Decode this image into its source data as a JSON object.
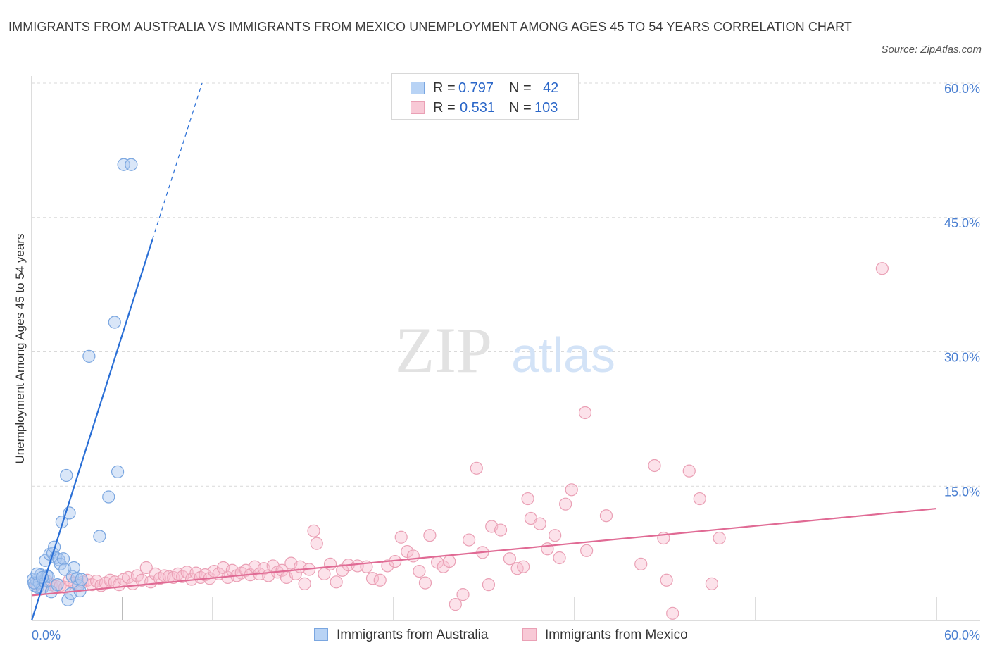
{
  "title": "IMMIGRANTS FROM AUSTRALIA VS IMMIGRANTS FROM MEXICO UNEMPLOYMENT AMONG AGES 45 TO 54 YEARS CORRELATION CHART",
  "source": "Source: ZipAtlas.com",
  "legend": {
    "australia": {
      "r_label": "R =",
      "r_value": "0.797",
      "n_label": "N =",
      "n_value": "42"
    },
    "mexico": {
      "r_label": "R =",
      "r_value": "0.531",
      "n_label": "N =",
      "n_value": "103"
    }
  },
  "bottom_legend": {
    "australia": "Immigrants from Australia",
    "mexico": "Immigrants from Mexico"
  },
  "watermark": {
    "zip": "ZIP",
    "atlas": "atlas"
  },
  "colors": {
    "australia": "#7aa6e0",
    "australia_line": "#2a6fd6",
    "mexico": "#eaa0b5",
    "mexico_line": "#e06a94",
    "tick": "#4a7fd1",
    "grid": "#d9d9d9"
  },
  "chart_data": {
    "type": "scatter",
    "xlabel": "",
    "ylabel": "Unemployment Among Ages 45 to 54 years",
    "xlim": [
      0,
      60
    ],
    "ylim": [
      0,
      60
    ],
    "x_tick_labels": [
      {
        "value": 0,
        "label": "0.0%"
      },
      {
        "value": 60,
        "label": "60.0%"
      }
    ],
    "y_tick_labels": [
      {
        "value": 15,
        "label": "15.0%"
      },
      {
        "value": 30,
        "label": "30.0%"
      },
      {
        "value": 45,
        "label": "45.0%"
      },
      {
        "value": 60,
        "label": "60.0%"
      }
    ],
    "series": [
      {
        "name": "Immigrants from Australia",
        "points": [
          [
            0.1,
            4.6
          ],
          [
            0.2,
            3.9
          ],
          [
            0.3,
            4.5
          ],
          [
            0.4,
            3.7
          ],
          [
            0.5,
            4.2
          ],
          [
            0.6,
            5.1
          ],
          [
            0.7,
            3.6
          ],
          [
            0.8,
            4.4
          ],
          [
            0.9,
            6.7
          ],
          [
            1.0,
            5.0
          ],
          [
            1.1,
            4.9
          ],
          [
            1.2,
            7.4
          ],
          [
            1.3,
            3.2
          ],
          [
            1.4,
            7.5
          ],
          [
            1.5,
            8.2
          ],
          [
            1.6,
            7.0
          ],
          [
            1.7,
            4.0
          ],
          [
            1.8,
            6.8
          ],
          [
            1.9,
            6.3
          ],
          [
            2.0,
            11.0
          ],
          [
            2.1,
            6.9
          ],
          [
            2.2,
            5.7
          ],
          [
            2.3,
            16.2
          ],
          [
            2.4,
            2.3
          ],
          [
            2.5,
            12.0
          ],
          [
            2.6,
            3.0
          ],
          [
            2.7,
            4.9
          ],
          [
            2.8,
            5.9
          ],
          [
            3.0,
            4.7
          ],
          [
            3.1,
            3.9
          ],
          [
            3.2,
            3.3
          ],
          [
            3.3,
            4.6
          ],
          [
            3.8,
            29.5
          ],
          [
            4.5,
            9.4
          ],
          [
            5.1,
            13.8
          ],
          [
            5.5,
            33.3
          ],
          [
            5.7,
            16.6
          ],
          [
            6.1,
            50.9
          ],
          [
            6.6,
            50.9
          ],
          [
            0.15,
            4.2
          ],
          [
            0.35,
            5.2
          ],
          [
            0.7,
            4.8
          ]
        ],
        "trend_solid": [
          [
            0,
            0
          ],
          [
            8,
            42.5
          ]
        ],
        "trend_dashed": [
          [
            8,
            42.5
          ],
          [
            11.3,
            60
          ]
        ]
      },
      {
        "name": "Immigrants from Mexico",
        "points": [
          [
            0.3,
            4.1
          ],
          [
            0.6,
            3.5
          ],
          [
            1.0,
            4.4
          ],
          [
            1.3,
            4.0
          ],
          [
            1.6,
            3.8
          ],
          [
            1.9,
            3.9
          ],
          [
            2.2,
            3.7
          ],
          [
            2.5,
            4.5
          ],
          [
            2.8,
            4.2
          ],
          [
            3.1,
            4.1
          ],
          [
            3.4,
            4.3
          ],
          [
            3.7,
            4.5
          ],
          [
            4.0,
            4.0
          ],
          [
            4.3,
            4.4
          ],
          [
            4.6,
            3.9
          ],
          [
            4.9,
            4.2
          ],
          [
            5.2,
            4.5
          ],
          [
            5.5,
            4.3
          ],
          [
            5.8,
            4.0
          ],
          [
            6.1,
            4.6
          ],
          [
            6.4,
            4.8
          ],
          [
            6.7,
            4.1
          ],
          [
            7.0,
            5.0
          ],
          [
            7.3,
            4.5
          ],
          [
            7.6,
            5.9
          ],
          [
            7.9,
            4.3
          ],
          [
            8.2,
            5.2
          ],
          [
            8.5,
            4.7
          ],
          [
            8.8,
            5.0
          ],
          [
            9.1,
            4.9
          ],
          [
            9.4,
            4.8
          ],
          [
            9.7,
            5.2
          ],
          [
            10.0,
            4.9
          ],
          [
            10.3,
            5.4
          ],
          [
            10.6,
            4.6
          ],
          [
            10.9,
            5.3
          ],
          [
            11.2,
            4.8
          ],
          [
            11.5,
            5.1
          ],
          [
            11.8,
            4.7
          ],
          [
            12.1,
            5.5
          ],
          [
            12.4,
            5.2
          ],
          [
            12.7,
            5.9
          ],
          [
            13.0,
            4.8
          ],
          [
            13.3,
            5.6
          ],
          [
            13.6,
            5.0
          ],
          [
            13.9,
            5.3
          ],
          [
            14.2,
            5.6
          ],
          [
            14.5,
            5.1
          ],
          [
            14.8,
            6.0
          ],
          [
            15.1,
            5.2
          ],
          [
            15.4,
            5.8
          ],
          [
            15.7,
            5.0
          ],
          [
            16.0,
            6.1
          ],
          [
            16.3,
            5.4
          ],
          [
            16.6,
            5.6
          ],
          [
            16.9,
            4.8
          ],
          [
            17.2,
            6.4
          ],
          [
            17.5,
            5.2
          ],
          [
            17.8,
            6.0
          ],
          [
            18.1,
            4.1
          ],
          [
            18.4,
            5.7
          ],
          [
            18.7,
            10.0
          ],
          [
            18.9,
            8.6
          ],
          [
            19.4,
            5.2
          ],
          [
            19.8,
            6.3
          ],
          [
            20.2,
            4.3
          ],
          [
            20.6,
            5.6
          ],
          [
            21.0,
            6.2
          ],
          [
            21.6,
            6.1
          ],
          [
            22.2,
            6.0
          ],
          [
            22.6,
            4.7
          ],
          [
            23.1,
            4.5
          ],
          [
            23.6,
            6.1
          ],
          [
            24.1,
            6.6
          ],
          [
            24.5,
            9.3
          ],
          [
            24.9,
            7.7
          ],
          [
            25.3,
            7.2
          ],
          [
            25.7,
            5.5
          ],
          [
            26.1,
            4.2
          ],
          [
            26.4,
            9.5
          ],
          [
            26.9,
            6.5
          ],
          [
            27.3,
            6.0
          ],
          [
            27.7,
            6.6
          ],
          [
            28.1,
            1.8
          ],
          [
            28.6,
            2.9
          ],
          [
            29.0,
            9.0
          ],
          [
            29.5,
            17.0
          ],
          [
            29.9,
            7.6
          ],
          [
            30.3,
            4.0
          ],
          [
            30.5,
            10.5
          ],
          [
            31.1,
            10.1
          ],
          [
            31.7,
            6.9
          ],
          [
            32.2,
            5.8
          ],
          [
            32.6,
            6.0
          ],
          [
            32.9,
            13.6
          ],
          [
            33.1,
            11.4
          ],
          [
            33.7,
            10.8
          ],
          [
            34.2,
            8.0
          ],
          [
            34.7,
            9.5
          ],
          [
            35.0,
            7.0
          ],
          [
            35.4,
            13.0
          ],
          [
            35.8,
            14.6
          ],
          [
            36.7,
            23.2
          ]
        ],
        "extra_points": [
          [
            36.8,
            7.8
          ],
          [
            38.1,
            11.7
          ],
          [
            40.4,
            6.3
          ],
          [
            41.3,
            17.3
          ],
          [
            41.9,
            9.2
          ],
          [
            42.1,
            4.5
          ],
          [
            42.5,
            0.8
          ],
          [
            43.6,
            16.7
          ],
          [
            44.3,
            13.6
          ],
          [
            45.1,
            4.1
          ],
          [
            45.6,
            9.2
          ],
          [
            56.4,
            39.3
          ]
        ],
        "trend_solid": [
          [
            0,
            2.8
          ],
          [
            60,
            12.5
          ]
        ]
      }
    ]
  }
}
